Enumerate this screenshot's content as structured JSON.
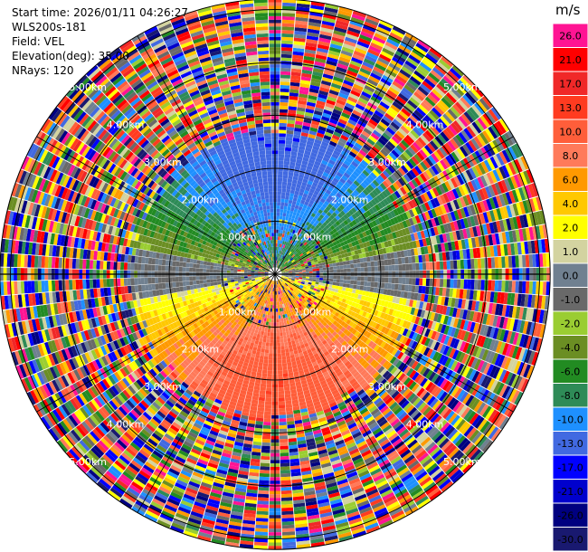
{
  "info": {
    "start_time": "Start time: 2026/01/11 04:26:27",
    "site": "WLS200s-181",
    "field": "Field: VEL",
    "elevation": "Elevation(deg): 35.00",
    "nrays": "NRays: 120"
  },
  "chart_data": {
    "type": "ppi",
    "field": "VEL",
    "n_rays": 120,
    "elevation_deg": 35.0,
    "max_range_km": 5.2,
    "range_rings_km": [
      1.0,
      2.0,
      3.0,
      4.0,
      5.0
    ],
    "range_ring_labels": [
      "1.00km",
      "2.00km",
      "3.00km",
      "4.00km",
      "5.00km"
    ],
    "pattern": "Radial winds toward the radar (negative) to the north, away from the radar (positive) to the south; noisy returns beyond about 2.6 km.",
    "colorbar": {
      "unit": "m/s",
      "tick_labels": [
        "26.0",
        "21.0",
        "17.0",
        "13.0",
        "10.0",
        "8.0",
        "6.0",
        "4.0",
        "2.0",
        "1.0",
        "0.0",
        "-1.0",
        "-2.0",
        "-4.0",
        "-6.0",
        "-8.0",
        "-10.0",
        "-13.0",
        "-17.0",
        "-21.0",
        "-26.0",
        "-30.0"
      ],
      "colors": [
        "#ff1493",
        "#ff0000",
        "#f02828",
        "#ff3b20",
        "#ff5e3a",
        "#ff7a5a",
        "#ff9900",
        "#ffc800",
        "#ffff00",
        "#d3d3a0",
        "#708090",
        "#696969",
        "#9acd32",
        "#6b8e23",
        "#228b22",
        "#2e8b57",
        "#1e90ff",
        "#4169e1",
        "#0000ff",
        "#0000cd",
        "#000080",
        "#191970"
      ]
    }
  }
}
